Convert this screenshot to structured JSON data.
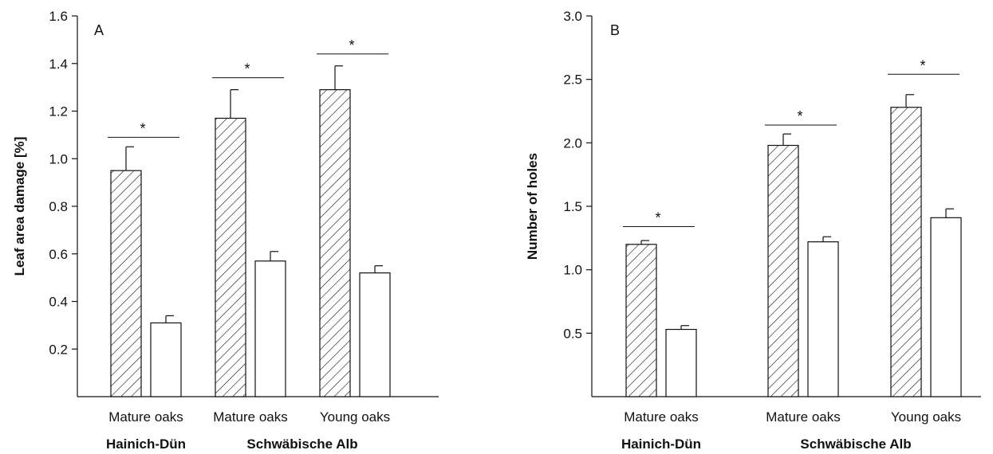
{
  "chart_data": [
    {
      "type": "bar",
      "panel_label": "A",
      "ylabel": "Leaf area damage [%]",
      "ylim": [
        0,
        1.6
      ],
      "yticks": [
        0.2,
        0.4,
        0.6,
        0.8,
        1.0,
        1.2,
        1.4,
        1.6
      ],
      "ytick_labels": [
        "0.2",
        "0.4",
        "0.6",
        "0.8",
        "1.0",
        "1.2",
        "1.4",
        "1.6"
      ],
      "categories": [
        "Mature oaks",
        "Mature oaks",
        "Young oaks"
      ],
      "groups": [
        {
          "label": "Hainich-Dün",
          "category_indices": [
            0
          ]
        },
        {
          "label": "Schwäbische Alb",
          "category_indices": [
            1,
            2
          ]
        }
      ],
      "series": [
        {
          "fill": "hatched",
          "values": [
            0.95,
            1.17,
            1.29
          ],
          "errors": [
            0.1,
            0.12,
            0.1
          ]
        },
        {
          "fill": "white",
          "values": [
            0.31,
            0.57,
            0.52
          ],
          "errors": [
            0.03,
            0.04,
            0.03
          ]
        }
      ],
      "significance": [
        {
          "category_index": 0,
          "label": "*",
          "y": 1.09
        },
        {
          "category_index": 1,
          "label": "*",
          "y": 1.34
        },
        {
          "category_index": 2,
          "label": "*",
          "y": 1.44
        }
      ],
      "grid": false
    },
    {
      "type": "bar",
      "panel_label": "B",
      "ylabel": "Number of holes",
      "ylim": [
        0,
        3.0
      ],
      "yticks": [
        0.5,
        1.0,
        1.5,
        2.0,
        2.5,
        3.0
      ],
      "ytick_labels": [
        "0.5",
        "1.0",
        "1.5",
        "2.0",
        "2.5",
        "3.0"
      ],
      "categories": [
        "Mature oaks",
        "Mature oaks",
        "Young oaks"
      ],
      "groups": [
        {
          "label": "Hainich-Dün",
          "category_indices": [
            0
          ]
        },
        {
          "label": "Schwäbische Alb",
          "category_indices": [
            1,
            2
          ]
        }
      ],
      "series": [
        {
          "fill": "hatched",
          "values": [
            1.2,
            1.98,
            2.28
          ],
          "errors": [
            0.03,
            0.09,
            0.1
          ]
        },
        {
          "fill": "white",
          "values": [
            0.53,
            1.22,
            1.41
          ],
          "errors": [
            0.03,
            0.04,
            0.07
          ]
        }
      ],
      "significance": [
        {
          "category_index": 0,
          "label": "*",
          "y": 1.34
        },
        {
          "category_index": 1,
          "label": "*",
          "y": 2.14
        },
        {
          "category_index": 2,
          "label": "*",
          "y": 2.54
        }
      ],
      "grid": false
    }
  ]
}
